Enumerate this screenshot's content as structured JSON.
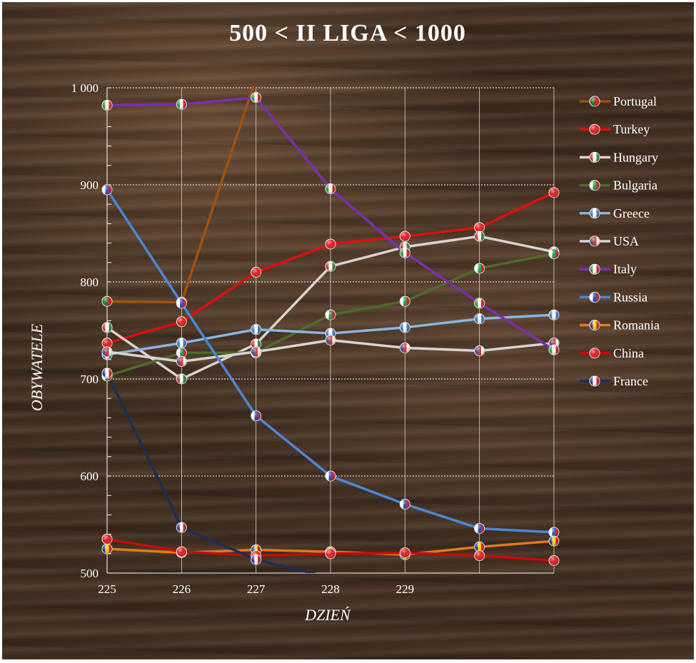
{
  "chart_data": {
    "type": "line",
    "title": "500 < II LIGA < 1000",
    "xlabel": "DZIEŃ",
    "ylabel": "OBYWATELE",
    "x": [
      225,
      226,
      227,
      228,
      229,
      230,
      231
    ],
    "xtick_labels": [
      "225",
      "226",
      "227",
      "228",
      "229"
    ],
    "ytick_labels": [
      "500",
      "600",
      "700",
      "800",
      "900",
      "1 000"
    ],
    "yticks": [
      500,
      600,
      700,
      800,
      900,
      1000
    ],
    "xlim": [
      225,
      231
    ],
    "ylim": [
      500,
      1000
    ],
    "grid": true,
    "legend_position": "right",
    "series": [
      {
        "name": "Portugal",
        "color": "#a0520f",
        "flag": [
          "#1a7a2a",
          "#d22020"
        ],
        "values": [
          780,
          779,
          1010,
          null,
          null,
          null,
          null
        ]
      },
      {
        "name": "Turkey",
        "color": "#e00e0e",
        "flag": [
          "#e22020",
          "#e22020"
        ],
        "values": [
          737,
          759,
          810,
          839,
          847,
          856,
          892
        ]
      },
      {
        "name": "Hungary",
        "color": "#d8d4d0",
        "flag": [
          "#d23030",
          "#ffffff",
          "#2a8a3a"
        ],
        "values": [
          753,
          700,
          736,
          816,
          836,
          847,
          831
        ]
      },
      {
        "name": "Bulgaria",
        "color": "#4e6b2a",
        "flag": [
          "#ffffff",
          "#2a9a4a",
          "#d22020"
        ],
        "values": [
          703,
          727,
          727,
          766,
          780,
          814,
          829
        ]
      },
      {
        "name": "Greece",
        "color": "#8ab4e0",
        "flag": [
          "#3a78c8",
          "#ffffff",
          "#3a78c8"
        ],
        "values": [
          725,
          737,
          751,
          747,
          753,
          762,
          766
        ]
      },
      {
        "name": "USA",
        "color": "#d8d4d0",
        "flag": [
          "#3a4a9a",
          "#d23030",
          "#ffffff"
        ],
        "values": [
          728,
          718,
          728,
          740,
          732,
          729,
          737
        ]
      },
      {
        "name": "Italy",
        "color": "#7a2fb0",
        "flag": [
          "#2a9a3a",
          "#ffffff",
          "#d22020"
        ],
        "values": [
          982,
          983,
          990,
          896,
          830,
          778,
          730
        ]
      },
      {
        "name": "Russia",
        "color": "#4a88d8",
        "flag": [
          "#ffffff",
          "#2a4ac0",
          "#d22020"
        ],
        "values": [
          895,
          778,
          662,
          600,
          571,
          546,
          542
        ]
      },
      {
        "name": "Romania",
        "color": "#e07a1a",
        "flag": [
          "#1a3aa0",
          "#f0d000",
          "#d22020"
        ],
        "values": [
          525,
          521,
          524,
          522,
          519,
          527,
          533
        ]
      },
      {
        "name": "China",
        "color": "#c80a0a",
        "flag": [
          "#e02020",
          "#e02020"
        ],
        "values": [
          535,
          522,
          518,
          520,
          521,
          518,
          513
        ]
      },
      {
        "name": "France",
        "color": "#1a2e5a",
        "flag": [
          "#2a3aa0",
          "#ffffff",
          "#d22020"
        ],
        "values": [
          706,
          547,
          514,
          495,
          null,
          null,
          null
        ]
      }
    ]
  }
}
